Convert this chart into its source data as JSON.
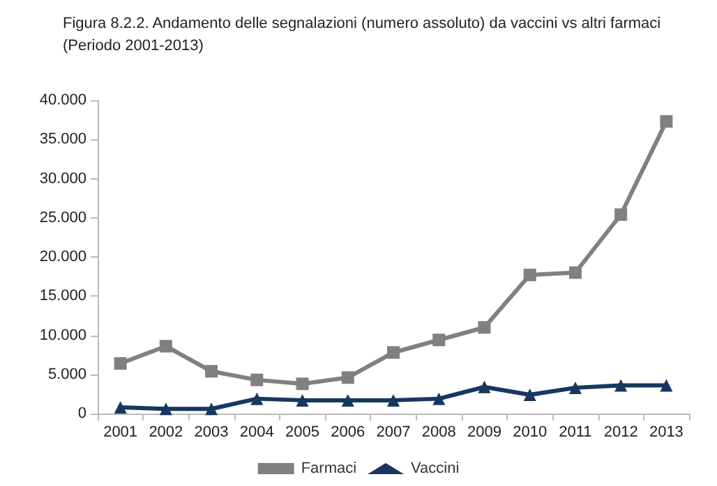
{
  "chart_data": {
    "type": "line",
    "title": "Figura 8.2.2. Andamento delle segnalazioni (numero assoluto) da vaccini vs altri farmaci\n(Periodo 2001-2013)",
    "categories": [
      "2001",
      "2002",
      "2003",
      "2004",
      "2005",
      "2006",
      "2007",
      "2008",
      "2009",
      "2010",
      "2011",
      "2012",
      "2013"
    ],
    "series": [
      {
        "name": "Farmaci",
        "color": "#808080",
        "marker": "square",
        "values": [
          6400,
          8600,
          5400,
          4300,
          3800,
          4600,
          7800,
          9400,
          11000,
          17700,
          18000,
          25400,
          37300
        ]
      },
      {
        "name": "Vaccini",
        "color": "#17375e",
        "marker": "triangle",
        "values": [
          800,
          600,
          600,
          1900,
          1700,
          1700,
          1700,
          1900,
          3400,
          2400,
          3300,
          3600,
          3600
        ]
      }
    ],
    "ylim": [
      0,
      40000
    ],
    "yticks": [
      {
        "value": 0,
        "label": "0"
      },
      {
        "value": 5000,
        "label": "5.000"
      },
      {
        "value": 10000,
        "label": "10.000"
      },
      {
        "value": 15000,
        "label": "15.000"
      },
      {
        "value": 20000,
        "label": "20.000"
      },
      {
        "value": 25000,
        "label": "25.000"
      },
      {
        "value": 30000,
        "label": "30.000"
      },
      {
        "value": 35000,
        "label": "35.000"
      },
      {
        "value": 40000,
        "label": "40.000"
      }
    ],
    "grid": false,
    "legend": "bottom",
    "line_style": "solid"
  }
}
